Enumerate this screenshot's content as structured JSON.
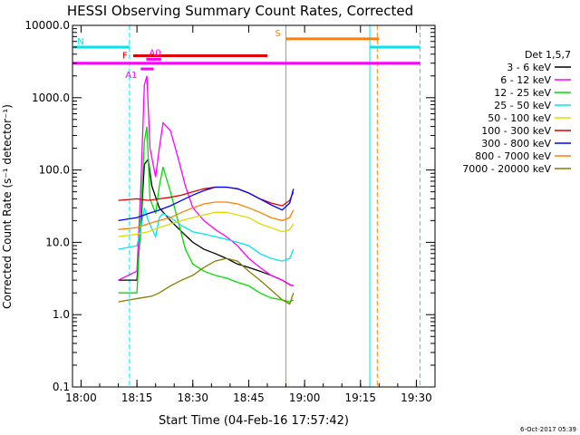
{
  "chart_data": {
    "type": "line",
    "title": "HESSI Observing Summary Count Rates, Corrected",
    "xlabel": "Start Time (04-Feb-16 17:57:42)",
    "ylabel": "Corrected Count Rate (s⁻¹ detector⁻¹)",
    "y_scale": "log",
    "ylim": [
      0.1,
      10000
    ],
    "xlim": [
      "17:57:42",
      "19:35:00"
    ],
    "x_tick_labels": [
      "18:00",
      "18:15",
      "18:30",
      "18:45",
      "19:00",
      "19:15",
      "19:30"
    ],
    "y_tick_labels": [
      "0.1",
      "1.0",
      "10.0",
      "100.0",
      "1000.0",
      "10000.0"
    ],
    "legend_title": "Det 1,5,7",
    "legend_position": "right",
    "footer_timestamp": "6-Oct-2017 05:39",
    "flag_labels": {
      "N": "N",
      "S": "S",
      "F": "F",
      "A0": "A0",
      "A1": "A1"
    },
    "flags": [
      {
        "label": "N",
        "color": "#00e5ee",
        "y": 5000,
        "segments": [
          [
            "17:58:00",
            "18:13:00"
          ],
          [
            "19:17:30",
            "19:31:00"
          ]
        ]
      },
      {
        "label": "S",
        "color": "#ff8000",
        "y": 6500,
        "segments": [
          [
            "18:55:00",
            "19:20:00"
          ]
        ]
      },
      {
        "label": "F",
        "color": "#e00000",
        "y": 3800,
        "segments": [
          [
            "18:14:00",
            "18:50:00"
          ]
        ]
      },
      {
        "label": "",
        "color": "#ff00ff",
        "y": 3000,
        "segments": [
          [
            "17:57:42",
            "19:31:00"
          ]
        ]
      },
      {
        "label": "A0",
        "color": "#ff00ff",
        "y": 3400,
        "segments": [
          [
            "18:17:30",
            "18:21:30"
          ]
        ]
      },
      {
        "label": "A1",
        "color": "#ff00ff",
        "y": 2500,
        "segments": [
          [
            "18:16:00",
            "18:19:30"
          ]
        ]
      }
    ],
    "vertical_lines": [
      {
        "time": "17:57:42",
        "color": "#00e5ee",
        "style": "solid"
      },
      {
        "time": "18:13:00",
        "color": "#00e5ee",
        "style": "dashed"
      },
      {
        "time": "18:55:00",
        "color": "#ff8000",
        "style": "solid"
      },
      {
        "time": "19:17:30",
        "color": "#00e5ee",
        "style": "solid"
      },
      {
        "time": "19:19:30",
        "color": "#ff8000",
        "style": "dashed"
      },
      {
        "time": "19:31:00",
        "color": "#00e5ee",
        "style": "dashed"
      }
    ],
    "series": [
      {
        "name": "3 - 6 keV",
        "color": "#000000",
        "points": [
          [
            "18:10",
            3
          ],
          [
            "18:15",
            3
          ],
          [
            "18:16",
            15
          ],
          [
            "18:17",
            120
          ],
          [
            "18:18",
            140
          ],
          [
            "18:19",
            60
          ],
          [
            "18:21",
            30
          ],
          [
            "18:24",
            20
          ],
          [
            "18:27",
            14
          ],
          [
            "18:30",
            10
          ],
          [
            "18:33",
            8
          ],
          [
            "18:36",
            7
          ],
          [
            "18:39",
            6
          ],
          [
            "18:42",
            5
          ],
          [
            "18:45",
            4.5
          ],
          [
            "18:48",
            4
          ],
          [
            "18:51",
            3.5
          ],
          [
            "18:54",
            3
          ],
          [
            "18:56",
            2.6
          ],
          [
            "18:57",
            2.5
          ]
        ]
      },
      {
        "name": "6 - 12 keV",
        "color": "#ff00ff",
        "points": [
          [
            "18:10",
            3
          ],
          [
            "18:15",
            4
          ],
          [
            "18:16",
            50
          ],
          [
            "18:17",
            1500
          ],
          [
            "18:17:40",
            2000
          ],
          [
            "18:18:30",
            200
          ],
          [
            "18:20",
            80
          ],
          [
            "18:21",
            200
          ],
          [
            "18:22",
            450
          ],
          [
            "18:24",
            350
          ],
          [
            "18:26",
            150
          ],
          [
            "18:28",
            60
          ],
          [
            "18:30",
            30
          ],
          [
            "18:33",
            20
          ],
          [
            "18:36",
            15
          ],
          [
            "18:39",
            12
          ],
          [
            "18:42",
            9
          ],
          [
            "18:45",
            6
          ],
          [
            "18:48",
            4.5
          ],
          [
            "18:51",
            3.5
          ],
          [
            "18:54",
            3
          ],
          [
            "18:56",
            2.6
          ],
          [
            "18:57",
            2.5
          ]
        ]
      },
      {
        "name": "12 - 25 keV",
        "color": "#00dd00",
        "points": [
          [
            "18:10",
            2
          ],
          [
            "18:15",
            2
          ],
          [
            "18:16",
            20
          ],
          [
            "18:17",
            250
          ],
          [
            "18:17:40",
            400
          ],
          [
            "18:18:30",
            40
          ],
          [
            "18:20",
            25
          ],
          [
            "18:21",
            60
          ],
          [
            "18:22",
            110
          ],
          [
            "18:24",
            50
          ],
          [
            "18:26",
            20
          ],
          [
            "18:28",
            8
          ],
          [
            "18:30",
            5
          ],
          [
            "18:33",
            4
          ],
          [
            "18:36",
            3.5
          ],
          [
            "18:39",
            3.2
          ],
          [
            "18:42",
            2.8
          ],
          [
            "18:45",
            2.5
          ],
          [
            "18:48",
            2
          ],
          [
            "18:51",
            1.7
          ],
          [
            "18:54",
            1.6
          ],
          [
            "18:56",
            1.5
          ],
          [
            "18:57",
            1.6
          ]
        ]
      },
      {
        "name": "25 - 50 keV",
        "color": "#00e5ee",
        "points": [
          [
            "18:10",
            8
          ],
          [
            "18:15",
            9
          ],
          [
            "18:16",
            15
          ],
          [
            "18:17",
            30
          ],
          [
            "18:18",
            20
          ],
          [
            "18:20",
            12
          ],
          [
            "18:21",
            22
          ],
          [
            "18:22",
            25
          ],
          [
            "18:24",
            22
          ],
          [
            "18:27",
            17
          ],
          [
            "18:30",
            14
          ],
          [
            "18:33",
            13
          ],
          [
            "18:36",
            12
          ],
          [
            "18:39",
            11
          ],
          [
            "18:42",
            10
          ],
          [
            "18:45",
            9
          ],
          [
            "18:48",
            7
          ],
          [
            "18:51",
            6
          ],
          [
            "18:54",
            5.5
          ],
          [
            "18:56",
            6
          ],
          [
            "18:57",
            8
          ]
        ]
      },
      {
        "name": "50 - 100 keV",
        "color": "#dddd00",
        "points": [
          [
            "18:10",
            12
          ],
          [
            "18:15",
            13
          ],
          [
            "18:18",
            14
          ],
          [
            "18:21",
            16
          ],
          [
            "18:24",
            18
          ],
          [
            "18:27",
            20
          ],
          [
            "18:30",
            22
          ],
          [
            "18:33",
            24
          ],
          [
            "18:36",
            26
          ],
          [
            "18:39",
            26
          ],
          [
            "18:42",
            24
          ],
          [
            "18:45",
            22
          ],
          [
            "18:48",
            18
          ],
          [
            "18:51",
            16
          ],
          [
            "18:54",
            14
          ],
          [
            "18:56",
            15
          ],
          [
            "18:57",
            18
          ]
        ]
      },
      {
        "name": "100 - 300 keV",
        "color": "#e00000",
        "points": [
          [
            "18:10",
            38
          ],
          [
            "18:15",
            40
          ],
          [
            "18:18",
            38
          ],
          [
            "18:21",
            40
          ],
          [
            "18:24",
            42
          ],
          [
            "18:27",
            45
          ],
          [
            "18:30",
            50
          ],
          [
            "18:33",
            55
          ],
          [
            "18:36",
            58
          ],
          [
            "18:39",
            58
          ],
          [
            "18:42",
            55
          ],
          [
            "18:45",
            48
          ],
          [
            "18:48",
            40
          ],
          [
            "18:51",
            35
          ],
          [
            "18:54",
            32
          ],
          [
            "18:56",
            38
          ],
          [
            "18:57",
            50
          ]
        ]
      },
      {
        "name": "300 - 800 keV",
        "color": "#0000ff",
        "points": [
          [
            "18:10",
            20
          ],
          [
            "18:15",
            22
          ],
          [
            "18:18",
            25
          ],
          [
            "18:21",
            28
          ],
          [
            "18:24",
            32
          ],
          [
            "18:27",
            38
          ],
          [
            "18:30",
            45
          ],
          [
            "18:33",
            52
          ],
          [
            "18:36",
            58
          ],
          [
            "18:39",
            58
          ],
          [
            "18:42",
            55
          ],
          [
            "18:45",
            48
          ],
          [
            "18:48",
            40
          ],
          [
            "18:51",
            33
          ],
          [
            "18:54",
            28
          ],
          [
            "18:56",
            35
          ],
          [
            "18:57",
            55
          ]
        ]
      },
      {
        "name": "800 - 7000 keV",
        "color": "#ff8000",
        "points": [
          [
            "18:10",
            15
          ],
          [
            "18:15",
            16
          ],
          [
            "18:18",
            18
          ],
          [
            "18:21",
            20
          ],
          [
            "18:24",
            22
          ],
          [
            "18:27",
            26
          ],
          [
            "18:30",
            30
          ],
          [
            "18:33",
            34
          ],
          [
            "18:36",
            36
          ],
          [
            "18:39",
            36
          ],
          [
            "18:42",
            34
          ],
          [
            "18:45",
            30
          ],
          [
            "18:48",
            26
          ],
          [
            "18:51",
            22
          ],
          [
            "18:54",
            20
          ],
          [
            "18:56",
            22
          ],
          [
            "18:57",
            28
          ]
        ]
      },
      {
        "name": "7000 - 20000 keV",
        "color": "#808000",
        "points": [
          [
            "18:10",
            1.5
          ],
          [
            "18:13",
            1.6
          ],
          [
            "18:16",
            1.7
          ],
          [
            "18:19",
            1.8
          ],
          [
            "18:21",
            2
          ],
          [
            "18:24",
            2.5
          ],
          [
            "18:27",
            3
          ],
          [
            "18:30",
            3.5
          ],
          [
            "18:33",
            4.5
          ],
          [
            "18:36",
            5.5
          ],
          [
            "18:39",
            6
          ],
          [
            "18:42",
            5.5
          ],
          [
            "18:45",
            4
          ],
          [
            "18:48",
            3
          ],
          [
            "18:51",
            2.2
          ],
          [
            "18:54",
            1.6
          ],
          [
            "18:56",
            1.4
          ],
          [
            "18:57",
            2
          ]
        ]
      }
    ]
  }
}
